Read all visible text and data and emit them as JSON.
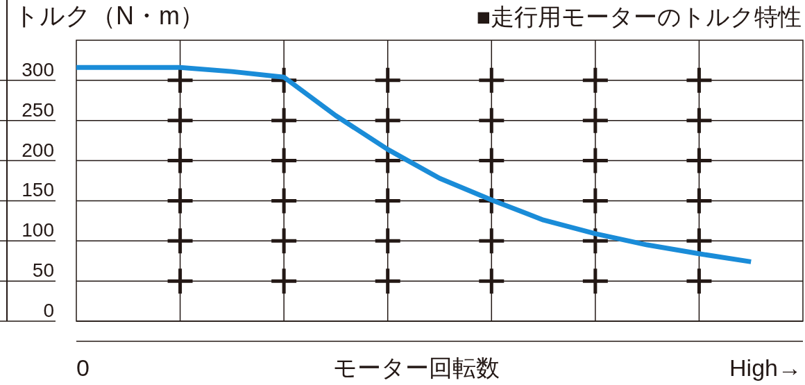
{
  "chart_data": {
    "type": "line",
    "title": "■走行用モーターのトルク特性",
    "ylabel": "トルク（N・m）",
    "xlabel": "モーター回転数",
    "annotations": [
      "0",
      "High→"
    ],
    "categories": [
      null,
      null,
      null,
      null,
      null,
      null,
      null,
      null,
      null,
      null,
      null,
      null,
      null,
      null
    ],
    "ylim": [
      0,
      350
    ],
    "yticks": [
      0,
      50,
      100,
      150,
      200,
      250,
      300
    ],
    "grid": true,
    "line_style": "solid",
    "series": [
      {
        "color": "#1a8cd8",
        "values": [
          316,
          316,
          316,
          311,
          304,
          256,
          214,
          178,
          151,
          126,
          109,
          95,
          84,
          74
        ]
      }
    ]
  }
}
